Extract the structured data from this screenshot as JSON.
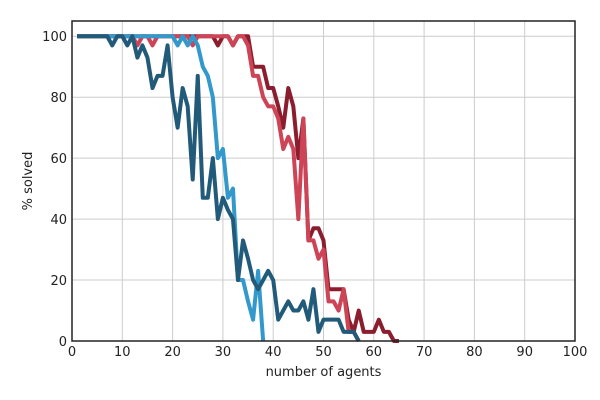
{
  "chart_data": {
    "type": "line",
    "title": "",
    "xlabel": "number of agents",
    "ylabel": "% solved",
    "xlim": [
      0,
      100
    ],
    "ylim": [
      0,
      105
    ],
    "xticks": [
      0,
      10,
      20,
      30,
      40,
      50,
      60,
      70,
      80,
      90,
      100
    ],
    "yticks": [
      0,
      20,
      40,
      60,
      80,
      100
    ],
    "grid": true,
    "series": [
      {
        "color": "#8b1e2e",
        "x": [
          1,
          2,
          3,
          4,
          5,
          6,
          7,
          8,
          9,
          10,
          11,
          12,
          13,
          14,
          15,
          16,
          17,
          18,
          19,
          20,
          21,
          22,
          23,
          24,
          25,
          26,
          27,
          28,
          29,
          30,
          31,
          32,
          33,
          34,
          35,
          36,
          37,
          38,
          39,
          40,
          41,
          42,
          43,
          44,
          45,
          46,
          47,
          48,
          49,
          50,
          51,
          52,
          53,
          54,
          55,
          56,
          57,
          58,
          59,
          60,
          61,
          62,
          63,
          64,
          65
        ],
        "y": [
          100,
          100,
          100,
          100,
          100,
          100,
          100,
          100,
          100,
          100,
          100,
          100,
          100,
          100,
          100,
          100,
          100,
          100,
          100,
          100,
          100,
          100,
          100,
          100,
          100,
          100,
          100,
          100,
          97,
          100,
          100,
          97,
          100,
          100,
          100,
          90,
          90,
          90,
          83,
          83,
          77,
          70,
          83,
          77,
          60,
          73,
          33,
          37,
          37,
          33,
          17,
          17,
          17,
          17,
          7,
          3,
          10,
          3,
          3,
          3,
          7,
          3,
          3,
          0,
          0
        ]
      },
      {
        "color": "#cc4455",
        "x": [
          1,
          2,
          3,
          4,
          5,
          6,
          7,
          8,
          9,
          10,
          11,
          12,
          13,
          14,
          15,
          16,
          17,
          18,
          19,
          20,
          21,
          22,
          23,
          24,
          25,
          26,
          27,
          28,
          29,
          30,
          31,
          32,
          33,
          34,
          35,
          36,
          37,
          38,
          39,
          40,
          41,
          42,
          43,
          44,
          45,
          46,
          47,
          48,
          49,
          50,
          51,
          52,
          53,
          54,
          55,
          56,
          57
        ],
        "y": [
          100,
          100,
          100,
          100,
          100,
          100,
          100,
          100,
          100,
          100,
          100,
          100,
          97,
          100,
          100,
          97,
          100,
          100,
          100,
          100,
          100,
          100,
          100,
          97,
          100,
          100,
          100,
          100,
          100,
          100,
          100,
          97,
          100,
          100,
          97,
          87,
          87,
          80,
          77,
          77,
          73,
          63,
          67,
          63,
          40,
          73,
          33,
          33,
          27,
          30,
          13,
          13,
          10,
          17,
          3,
          3,
          0
        ]
      },
      {
        "color": "#3399cc",
        "x": [
          1,
          2,
          3,
          4,
          5,
          6,
          7,
          8,
          9,
          10,
          11,
          12,
          13,
          14,
          15,
          16,
          17,
          18,
          19,
          20,
          21,
          22,
          23,
          24,
          25,
          26,
          27,
          28,
          29,
          30,
          31,
          32,
          33,
          34,
          35,
          36,
          37,
          38
        ],
        "y": [
          100,
          100,
          100,
          100,
          100,
          100,
          100,
          100,
          100,
          100,
          100,
          100,
          100,
          100,
          100,
          100,
          100,
          100,
          100,
          100,
          97,
          100,
          97,
          100,
          97,
          90,
          87,
          80,
          60,
          63,
          47,
          50,
          20,
          20,
          13,
          7,
          23,
          0
        ]
      },
      {
        "color": "#225a7a",
        "x": [
          1,
          2,
          3,
          4,
          5,
          6,
          7,
          8,
          9,
          10,
          11,
          12,
          13,
          14,
          15,
          16,
          17,
          18,
          19,
          20,
          21,
          22,
          23,
          24,
          25,
          26,
          27,
          28,
          29,
          30,
          31,
          32,
          33,
          34,
          35,
          36,
          37,
          38,
          39,
          40,
          41,
          42,
          43,
          44,
          45,
          46,
          47,
          48,
          49,
          50,
          51,
          52,
          53,
          54,
          55,
          56,
          57
        ],
        "y": [
          100,
          100,
          100,
          100,
          100,
          100,
          100,
          97,
          100,
          100,
          97,
          100,
          93,
          97,
          93,
          83,
          87,
          87,
          97,
          80,
          70,
          83,
          77,
          53,
          87,
          47,
          47,
          60,
          40,
          47,
          43,
          40,
          20,
          33,
          27,
          20,
          17,
          20,
          23,
          20,
          7,
          10,
          13,
          10,
          10,
          13,
          7,
          17,
          3,
          7,
          7,
          7,
          7,
          3,
          3,
          3,
          0
        ]
      }
    ]
  }
}
